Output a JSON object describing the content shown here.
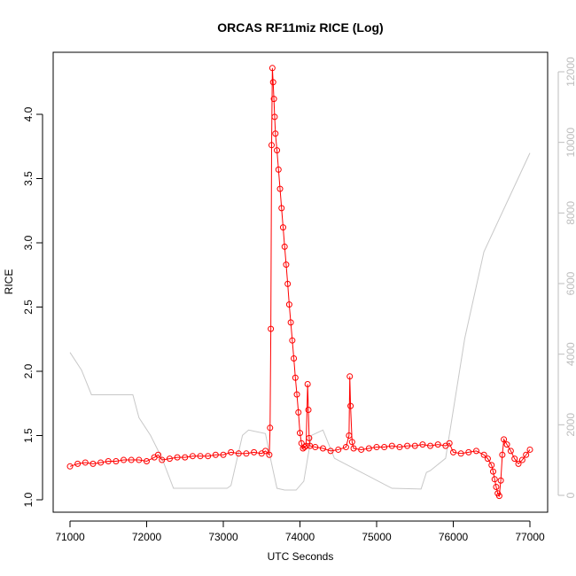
{
  "chart_data": {
    "type": "line",
    "title": "ORCAS RF11miz RICE (Log)",
    "xlabel": "UTC Seconds",
    "ylabel": "RICE",
    "xlim": [
      71000,
      77000
    ],
    "ylim": [
      1.0,
      4.35
    ],
    "y2lim": [
      0,
      12000
    ],
    "x_ticks": [
      71000,
      72000,
      73000,
      74000,
      75000,
      76000,
      77000
    ],
    "y_ticks": [
      1.0,
      1.5,
      2.0,
      2.5,
      3.0,
      3.5,
      4.0
    ],
    "y_tick_labels": [
      "1.0",
      "1.5",
      "2.0",
      "2.5",
      "3.0",
      "3.5",
      "4.0"
    ],
    "y2_ticks": [
      0,
      2000,
      4000,
      6000,
      8000,
      10000,
      12000
    ],
    "grid": false,
    "colors": {
      "rice": "#ff0000",
      "altitude": "#c8c8c8"
    },
    "series": [
      {
        "axis": "left",
        "style": "points-and-lines",
        "x": [
          71000,
          71100,
          71200,
          71300,
          71400,
          71500,
          71600,
          71700,
          71800,
          71900,
          72000,
          72100,
          72150,
          72200,
          72300,
          72400,
          72500,
          72600,
          72700,
          72800,
          72900,
          73000,
          73100,
          73200,
          73300,
          73400,
          73500,
          73550,
          73600,
          73610,
          73620,
          73630,
          73640,
          73650,
          73660,
          73670,
          73680,
          73700,
          73720,
          73740,
          73760,
          73780,
          73800,
          73820,
          73840,
          73860,
          73880,
          73900,
          73920,
          73940,
          73960,
          73980,
          74000,
          74020,
          74040,
          74060,
          74080,
          74100,
          74110,
          74120,
          74130,
          74200,
          74300,
          74400,
          74500,
          74600,
          74640,
          74650,
          74660,
          74680,
          74700,
          74800,
          74900,
          75000,
          75100,
          75200,
          75300,
          75400,
          75500,
          75600,
          75700,
          75800,
          75900,
          75950,
          76000,
          76100,
          76200,
          76300,
          76400,
          76450,
          76500,
          76520,
          76540,
          76560,
          76580,
          76600,
          76620,
          76640,
          76660,
          76700,
          76750,
          76800,
          76850,
          76900,
          76950,
          77000
        ],
        "values": [
          1.26,
          1.28,
          1.29,
          1.28,
          1.29,
          1.3,
          1.3,
          1.31,
          1.31,
          1.31,
          1.3,
          1.33,
          1.35,
          1.31,
          1.32,
          1.33,
          1.33,
          1.34,
          1.34,
          1.34,
          1.35,
          1.35,
          1.37,
          1.36,
          1.36,
          1.37,
          1.36,
          1.38,
          1.35,
          1.56,
          2.33,
          3.76,
          4.36,
          4.25,
          4.12,
          3.98,
          3.85,
          3.72,
          3.57,
          3.42,
          3.27,
          3.12,
          2.97,
          2.83,
          2.68,
          2.52,
          2.38,
          2.24,
          2.1,
          1.95,
          1.82,
          1.68,
          1.52,
          1.44,
          1.4,
          1.41,
          1.42,
          1.9,
          1.7,
          1.48,
          1.42,
          1.41,
          1.4,
          1.38,
          1.39,
          1.41,
          1.5,
          1.96,
          1.73,
          1.45,
          1.4,
          1.39,
          1.4,
          1.41,
          1.41,
          1.42,
          1.41,
          1.42,
          1.42,
          1.43,
          1.42,
          1.43,
          1.42,
          1.44,
          1.37,
          1.36,
          1.37,
          1.38,
          1.35,
          1.32,
          1.27,
          1.22,
          1.16,
          1.1,
          1.05,
          1.03,
          1.15,
          1.35,
          1.47,
          1.43,
          1.38,
          1.32,
          1.28,
          1.31,
          1.35,
          1.39
        ]
      },
      {
        "axis": "right",
        "style": "line",
        "x": [
          71000,
          71150,
          71280,
          71820,
          71900,
          72050,
          72200,
          72350,
          73050,
          73100,
          73250,
          73330,
          73550,
          73600,
          73700,
          73800,
          73950,
          74050,
          74150,
          74300,
          74450,
          75200,
          75580,
          75650,
          75700,
          75900,
          76150,
          76400,
          77000
        ],
        "values": [
          4050,
          3550,
          2850,
          2850,
          2200,
          1700,
          1050,
          200,
          200,
          280,
          1700,
          1850,
          1750,
          1200,
          200,
          150,
          150,
          400,
          1700,
          1850,
          1050,
          200,
          180,
          650,
          700,
          1050,
          4450,
          6900,
          9700
        ]
      }
    ]
  }
}
